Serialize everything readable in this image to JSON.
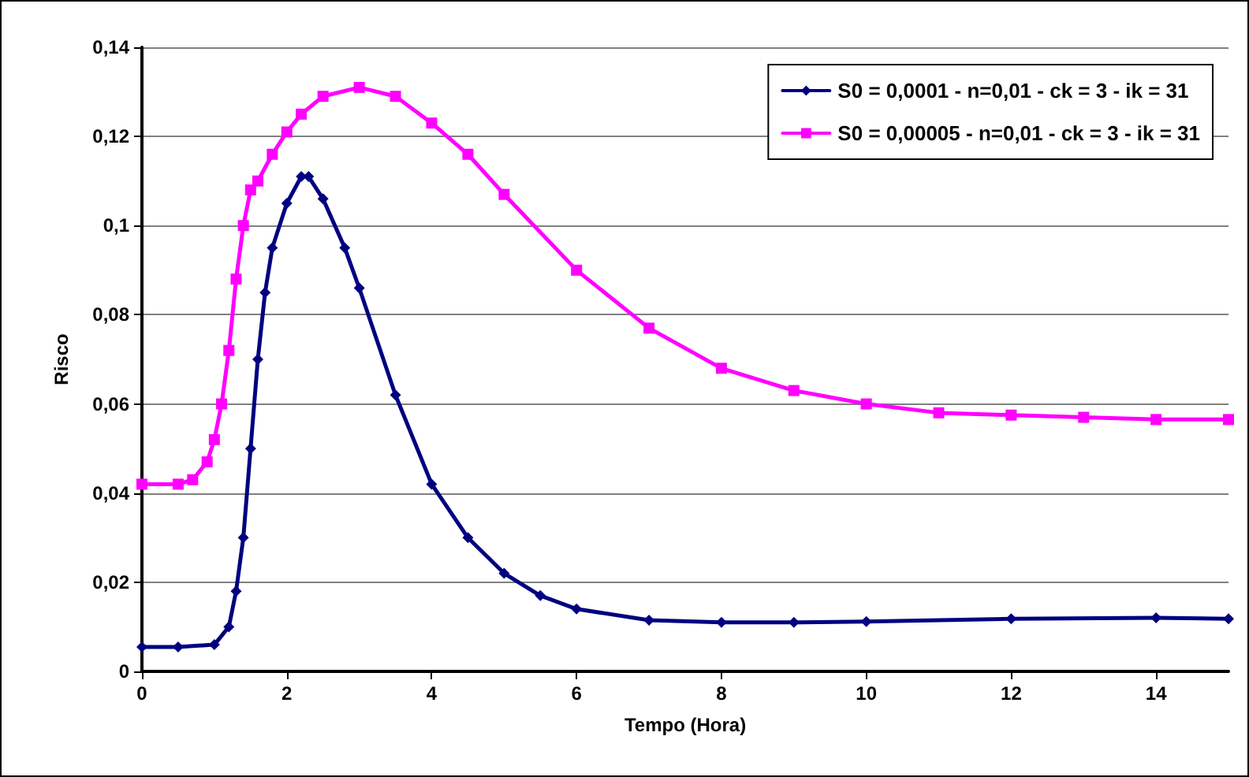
{
  "chart_data": {
    "type": "line",
    "xlabel": "Tempo (Hora)",
    "ylabel": "Risco",
    "xlim": [
      0,
      15
    ],
    "xticks": [
      0,
      2,
      4,
      6,
      8,
      10,
      12,
      14
    ],
    "ylim": [
      0,
      0.14
    ],
    "yticks": [
      {
        "value": 0,
        "label": "0"
      },
      {
        "value": 0.02,
        "label": "0,02"
      },
      {
        "value": 0.04,
        "label": "0,04"
      },
      {
        "value": 0.06,
        "label": "0,06"
      },
      {
        "value": 0.08,
        "label": "0,08"
      },
      {
        "value": 0.1,
        "label": "0,1"
      },
      {
        "value": 0.12,
        "label": "0,12"
      },
      {
        "value": 0.14,
        "label": "0,14"
      }
    ],
    "grid": "y",
    "legend": "top right",
    "line_style": "solid",
    "series": [
      {
        "name": "S0 = 0,0001 - n=0,01 - ck = 3 - ik = 31",
        "color": "#000080",
        "marker": "diamond",
        "x": [
          0,
          0.5,
          1,
          1.2,
          1.3,
          1.4,
          1.5,
          1.6,
          1.7,
          1.8,
          2,
          2.2,
          2.3,
          2.5,
          2.8,
          3,
          3.5,
          4,
          4.5,
          5,
          5.5,
          6,
          7,
          8,
          9,
          10,
          12,
          14,
          15
        ],
        "values": [
          0.0055,
          0.0055,
          0.006,
          0.01,
          0.018,
          0.03,
          0.05,
          0.07,
          0.085,
          0.095,
          0.105,
          0.111,
          0.111,
          0.106,
          0.095,
          0.086,
          0.062,
          0.042,
          0.03,
          0.022,
          0.017,
          0.014,
          0.0115,
          0.011,
          0.011,
          0.0112,
          0.0118,
          0.012,
          0.0118
        ]
      },
      {
        "name": "S0 = 0,00005 - n=0,01 - ck = 3 - ik = 31",
        "color": "#ff00ff",
        "marker": "square",
        "x": [
          0,
          0.5,
          0.7,
          0.9,
          1,
          1.1,
          1.2,
          1.3,
          1.4,
          1.5,
          1.6,
          1.8,
          2,
          2.2,
          2.5,
          3,
          3.5,
          4,
          4.5,
          5,
          6,
          7,
          8,
          9,
          10,
          11,
          12,
          13,
          14,
          15
        ],
        "values": [
          0.042,
          0.042,
          0.043,
          0.047,
          0.052,
          0.06,
          0.072,
          0.088,
          0.1,
          0.108,
          0.11,
          0.116,
          0.121,
          0.125,
          0.129,
          0.131,
          0.129,
          0.123,
          0.116,
          0.107,
          0.09,
          0.077,
          0.068,
          0.063,
          0.06,
          0.058,
          0.0575,
          0.057,
          0.0565,
          0.0565
        ]
      }
    ]
  }
}
